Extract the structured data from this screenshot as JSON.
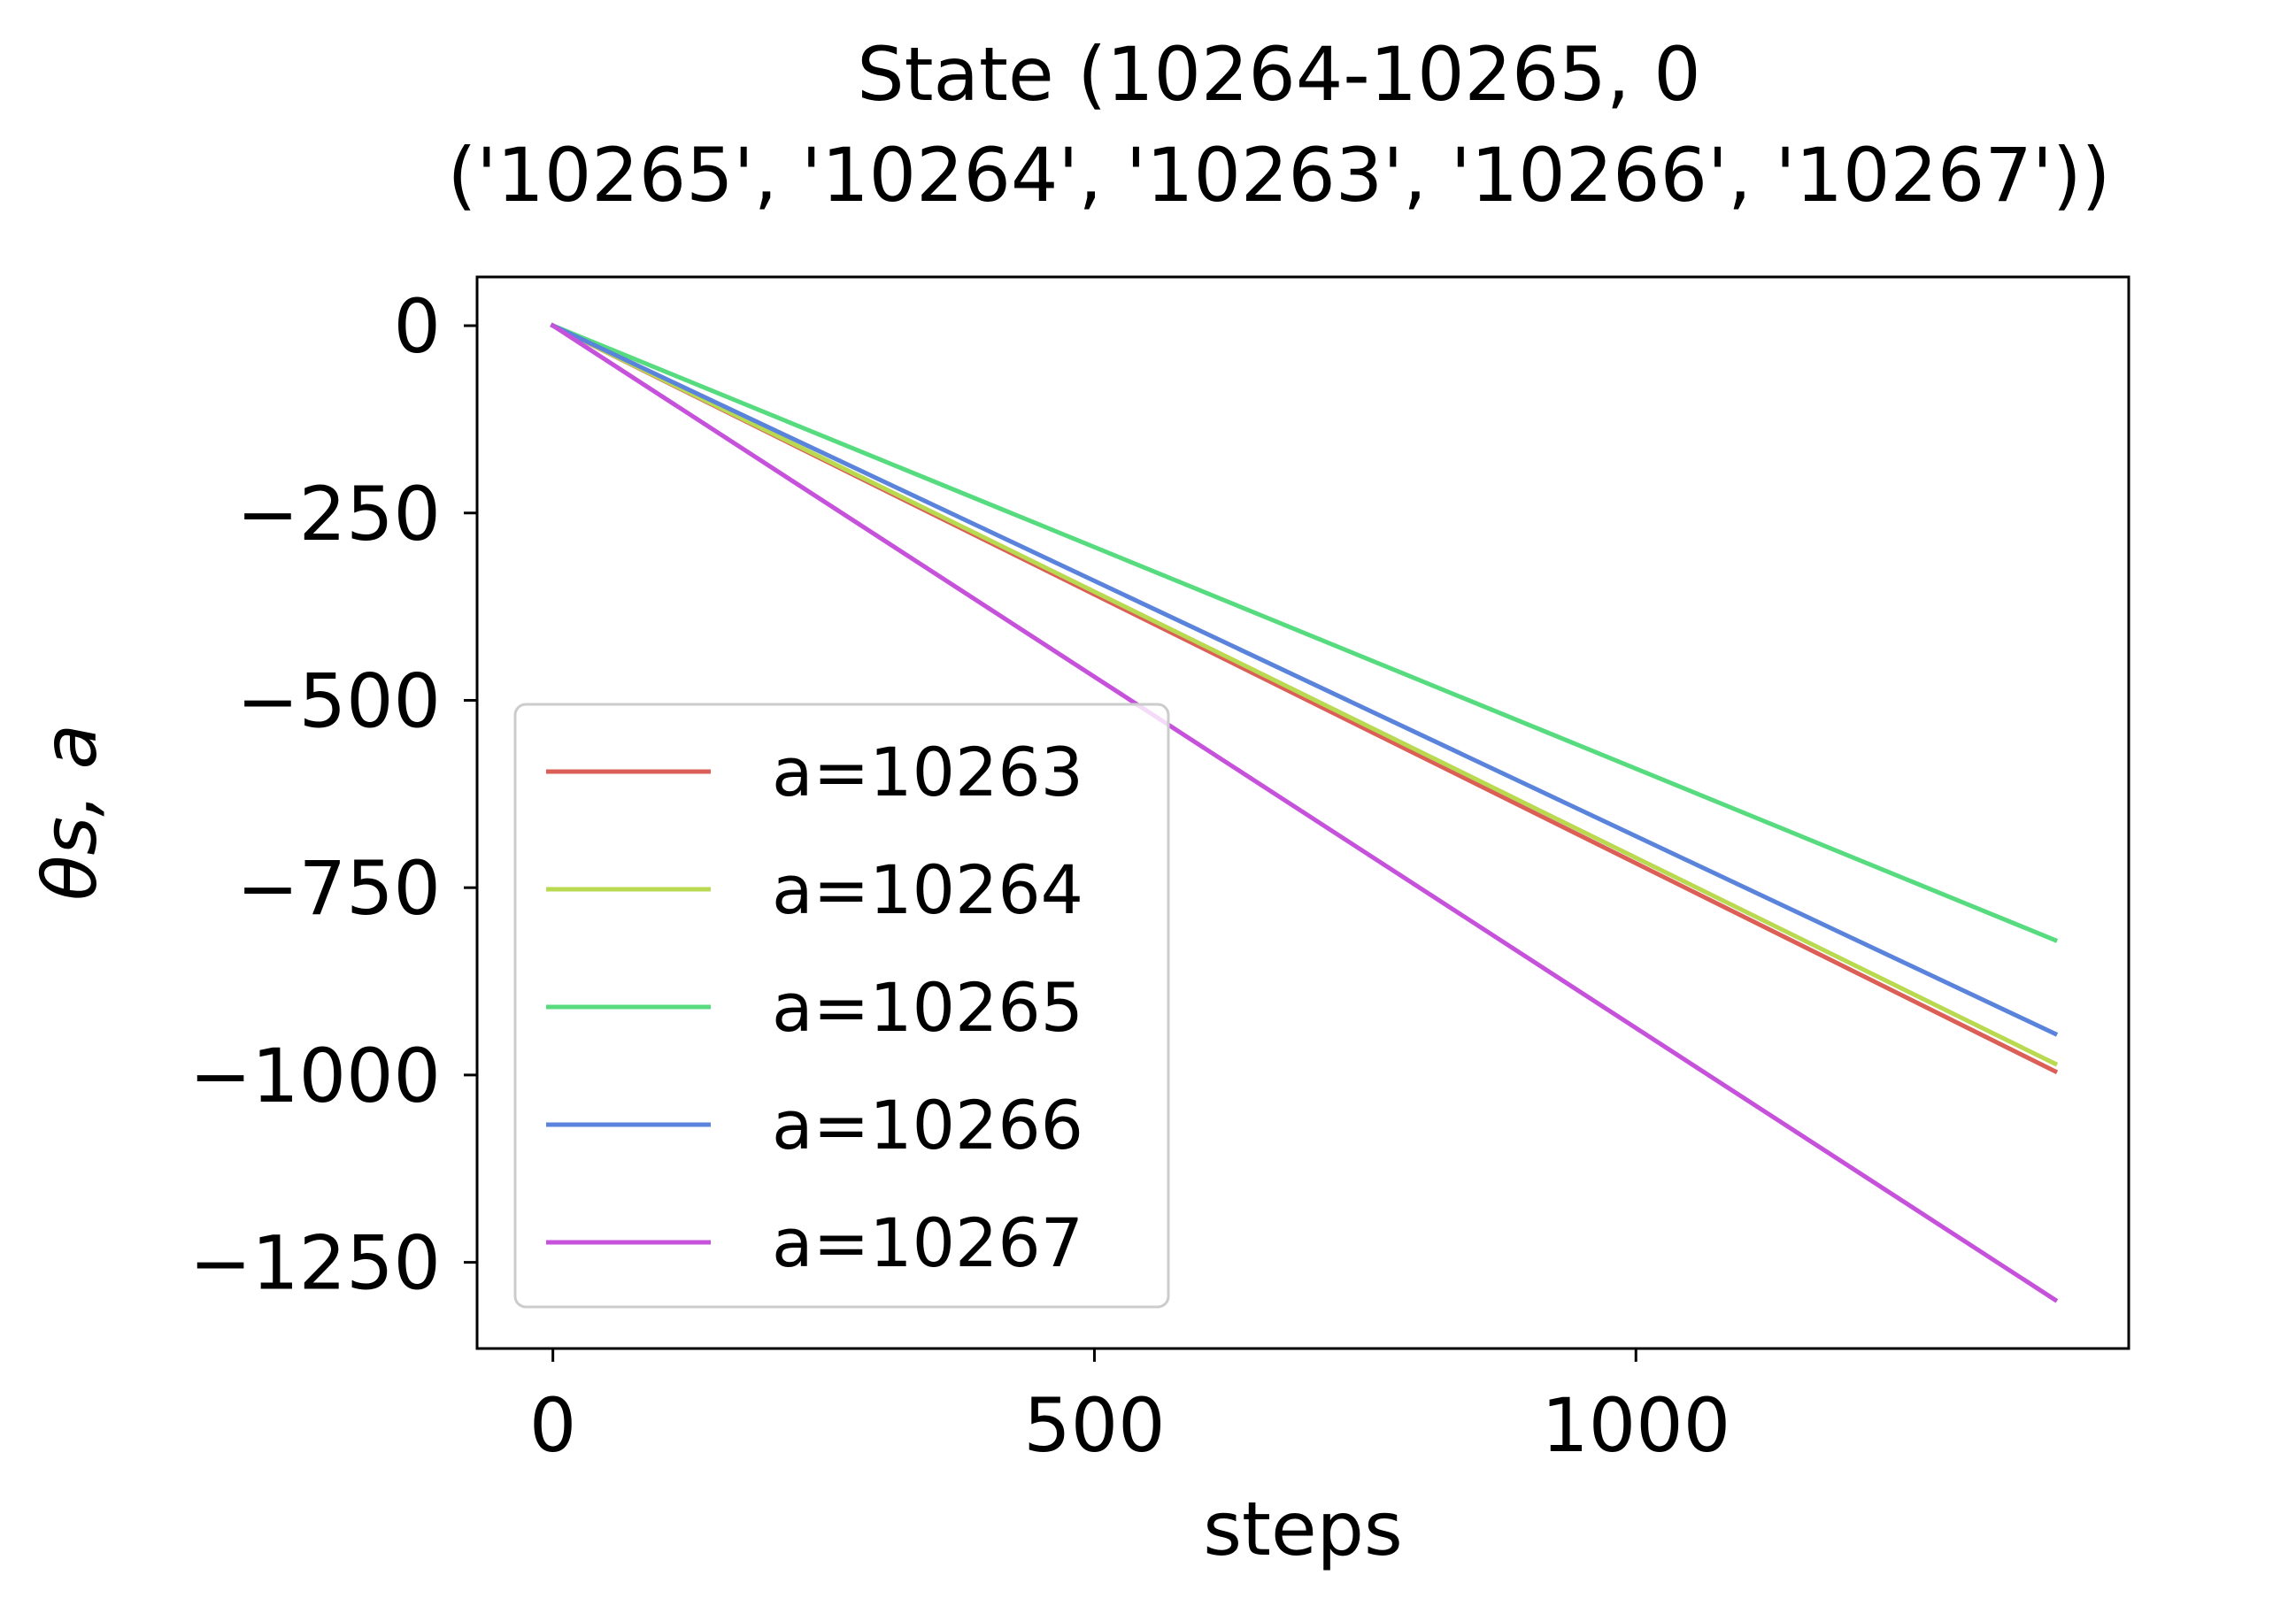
{
  "chart_data": {
    "type": "line",
    "title_lines": [
      "State (10264-10265, 0",
      "('10265', '10264', '10263', '10266', '10267'))"
    ],
    "xlabel": "steps",
    "ylabel": "θs, a",
    "xlim": [
      -70,
      1455
    ],
    "ylim": [
      -1365,
      65
    ],
    "xticks": [
      0,
      500,
      1000
    ],
    "xtick_labels": [
      "0",
      "500",
      "1000"
    ],
    "yticks": [
      0,
      -250,
      -500,
      -750,
      -1000,
      -1250
    ],
    "ytick_labels": [
      "0",
      "−250",
      "−500",
      "−750",
      "−1000",
      "−1250"
    ],
    "grid": false,
    "legend_position": "lower-left",
    "series": [
      {
        "name": "a=10263",
        "color": "#db5f57",
        "x": [
          0,
          1387
        ],
        "y": [
          0,
          -995
        ]
      },
      {
        "name": "a=10264",
        "color": "#b9d950",
        "x": [
          0,
          1387
        ],
        "y": [
          0,
          -985
        ]
      },
      {
        "name": "a=10265",
        "color": "#57db7f",
        "x": [
          0,
          1387
        ],
        "y": [
          0,
          -820
        ]
      },
      {
        "name": "a=10266",
        "color": "#5a83db",
        "x": [
          0,
          1387
        ],
        "y": [
          0,
          -945
        ]
      },
      {
        "name": "a=10267",
        "color": "#c651db",
        "x": [
          0,
          1387
        ],
        "y": [
          0,
          -1300
        ]
      }
    ]
  }
}
